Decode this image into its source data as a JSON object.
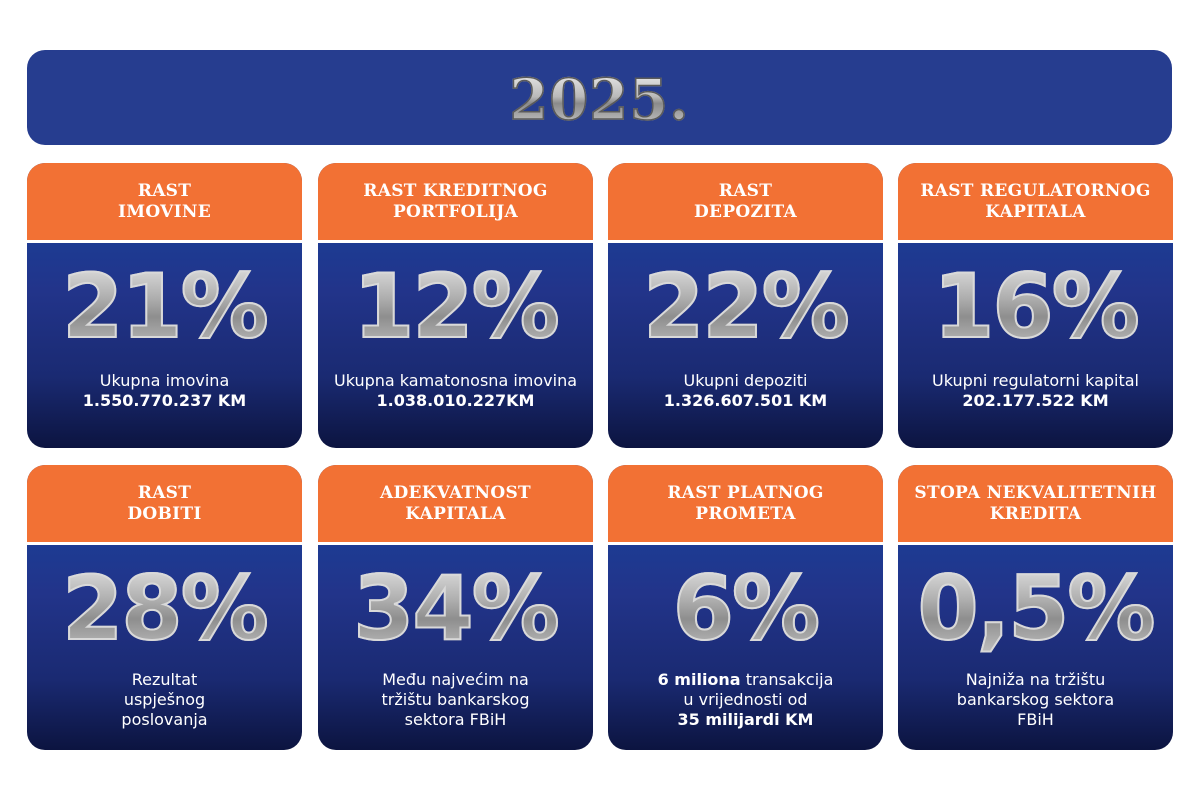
{
  "banner": {
    "year": "2025."
  },
  "colors": {
    "banner": "#263d8f",
    "header": "#f27134",
    "card_top": "#1446a0",
    "card_bottom": "#0c1440"
  },
  "cards": [
    {
      "title_1": "RAST",
      "title_2": "IMOVINE",
      "value": "21%",
      "line_1": "Ukupna imovina",
      "line_2": "1.550.770.237 KM"
    },
    {
      "title_1": "RAST KREDITNOG",
      "title_2": "PORTFOLIJA",
      "value": "12%",
      "line_1": "Ukupna kamatonosna imovina",
      "line_2": "1.038.010.227KM"
    },
    {
      "title_1": "RAST",
      "title_2": "DEPOZITA",
      "value": "22%",
      "line_1": "Ukupni depoziti",
      "line_2": "1.326.607.501 KM"
    },
    {
      "title_1": "RAST REGULATORNOG",
      "title_2": "KAPITALA",
      "value": "16%",
      "line_1": "Ukupni regulatorni kapital",
      "line_2": "202.177.522 KM"
    },
    {
      "title_1": "RAST",
      "title_2": "DOBITI",
      "value": "28%",
      "line_1": "Rezultat",
      "line_2": "uspješnog",
      "line_3": "poslovanja"
    },
    {
      "title_1": "ADEKVATNOST",
      "title_2": "KAPITALA",
      "value": "34%",
      "line_1": "Među najvećim na",
      "line_2": "tržištu bankarskog",
      "line_3": "sektora FBiH"
    },
    {
      "title_1": "RAST PLATNOG",
      "title_2": "PROMETA",
      "value": "6%",
      "line_1_bold": "6 miliona",
      "line_1_rest": " transakcija",
      "line_2": "u vrijednosti od",
      "line_3": "35 milijardi KM"
    },
    {
      "title_1": "STOPA NEKVALITETNIH",
      "title_2": "KREDITA",
      "value": "0,5%",
      "line_1": "Najniža na tržištu",
      "line_2": "bankarskog sektora",
      "line_3": "FBiH"
    }
  ]
}
